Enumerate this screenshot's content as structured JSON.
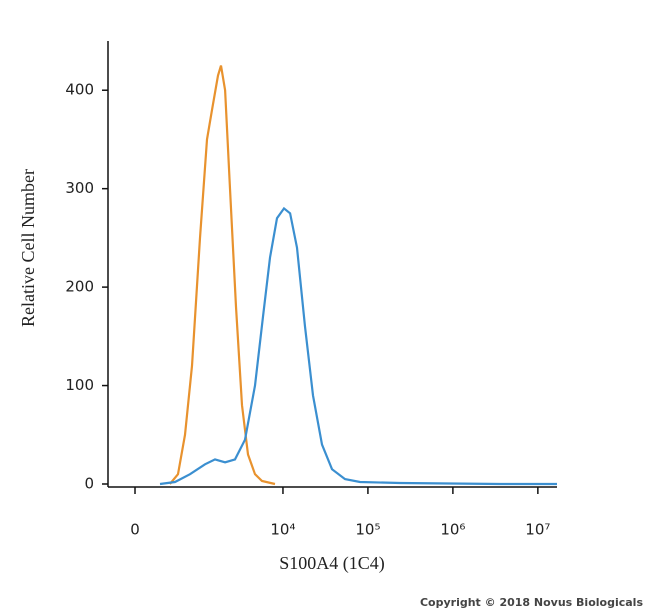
{
  "chart_data": {
    "type": "line",
    "ylabel": "Relative Cell Number",
    "xlabel": "S100A4 (1C4)",
    "footer": "Copyright © 2018 Novus Biologicals",
    "xscale": "asinh",
    "xscale_cofactor": 363,
    "xlim": [
      -290,
      16800000
    ],
    "xticks": [
      {
        "value": 0,
        "label": "0"
      },
      {
        "value": 10000,
        "label": "10⁴"
      },
      {
        "value": 100000,
        "label": "10⁵"
      },
      {
        "value": 1000000,
        "label": "10⁶"
      },
      {
        "value": 10000000,
        "label": "10⁷"
      }
    ],
    "ylim": [
      0,
      450
    ],
    "yticks": [
      0,
      100,
      200,
      300,
      400
    ],
    "series": [
      {
        "color": "#e8922e",
        "x": [
          397,
          525,
          657,
          812,
          1026,
          1251,
          1440,
          1701,
          1851,
          2067,
          2371,
          2791,
          3290,
          3870,
          4683,
          5663,
          8055
        ],
        "values": [
          0,
          10,
          50,
          120,
          250,
          350,
          380,
          415,
          425,
          400,
          300,
          180,
          80,
          30,
          10,
          3,
          0
        ]
      },
      {
        "color": "#3b8fd0",
        "x": [
          265,
          475,
          765,
          1183,
          1565,
          2067,
          2716,
          3568,
          4683,
          5822,
          7039,
          8505,
          10291,
          12124,
          14629,
          18186,
          22579,
          28822,
          37788,
          53724,
          80768,
          238491,
          3590000,
          16800000
        ],
        "values": [
          0,
          2,
          10,
          20,
          25,
          22,
          25,
          45,
          100,
          170,
          230,
          270,
          280,
          275,
          240,
          160,
          90,
          40,
          15,
          5,
          2,
          1,
          0,
          0
        ]
      }
    ]
  }
}
